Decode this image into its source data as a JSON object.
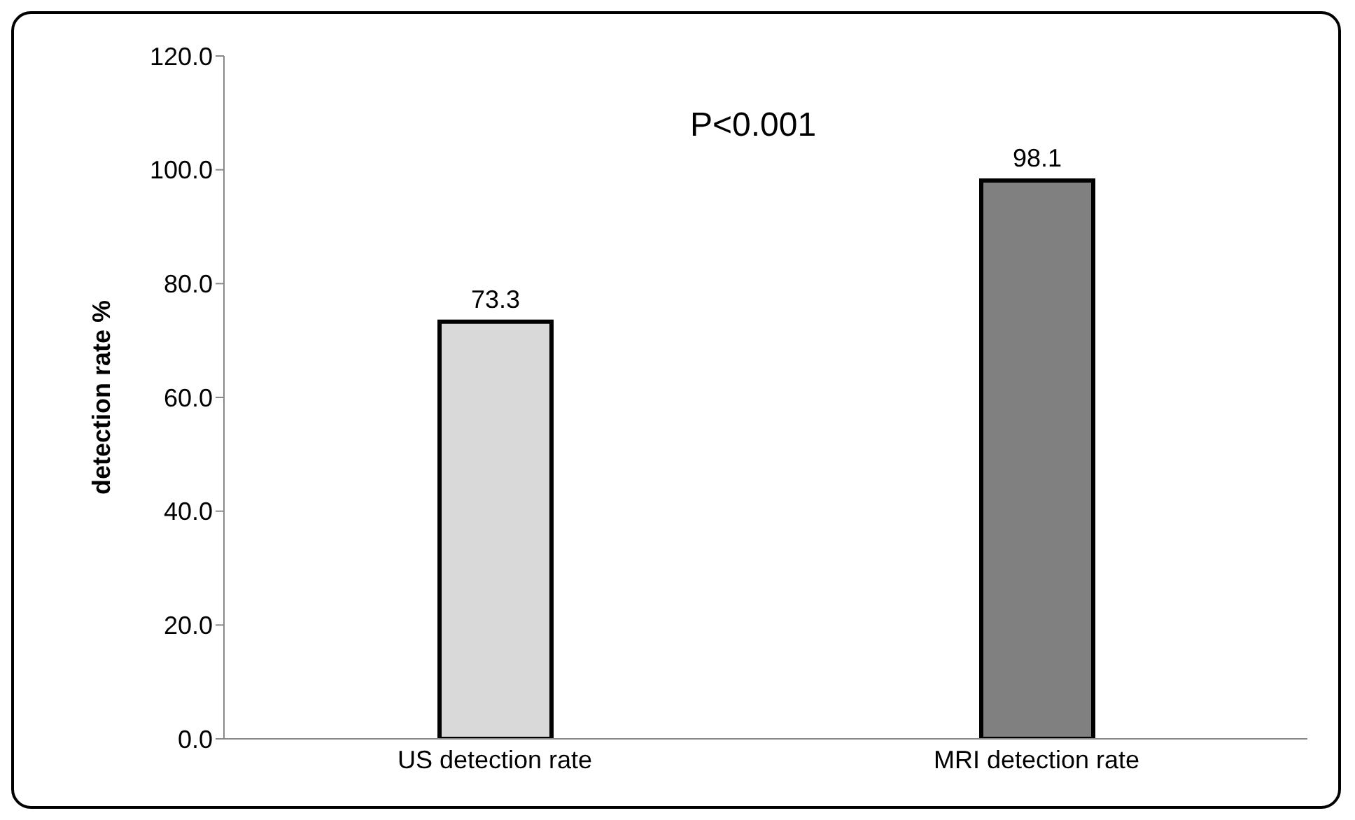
{
  "chart_data": {
    "type": "bar",
    "ylabel": "detection rate %",
    "categories": [
      "US detection rate",
      "MRI detection rate"
    ],
    "values": [
      73.3,
      98.1
    ],
    "colors": [
      "#d9d9d9",
      "#808080"
    ],
    "ylim": [
      0,
      120
    ],
    "yticks": [
      {
        "value": 0,
        "label": "0.0"
      },
      {
        "value": 20,
        "label": "20.0"
      },
      {
        "value": 40,
        "label": "40.0"
      },
      {
        "value": 60,
        "label": "60.0"
      },
      {
        "value": 80,
        "label": "80.0"
      },
      {
        "value": 100,
        "label": "100.0"
      },
      {
        "value": 120,
        "label": "120.0"
      }
    ],
    "data_labels": true,
    "annotations": [
      "P<0.001"
    ],
    "grid": false,
    "legend": false
  }
}
